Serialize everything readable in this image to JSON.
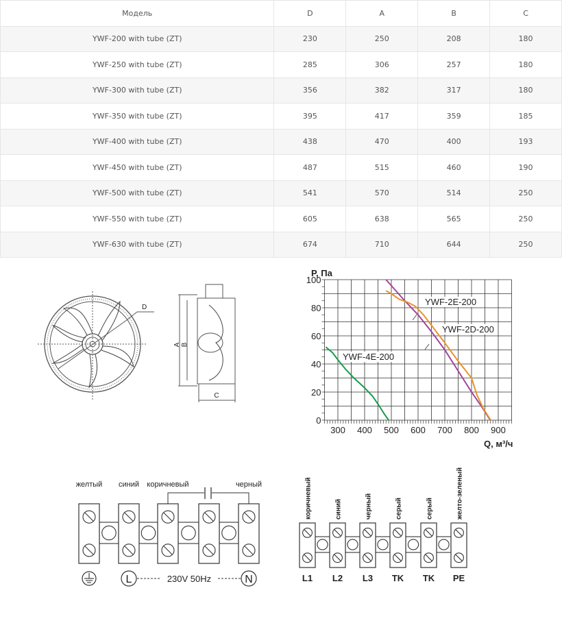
{
  "table": {
    "headers": [
      "Модель",
      "D",
      "A",
      "B",
      "C"
    ],
    "rows": [
      [
        "YWF-200 with tube (ZT)",
        "230",
        "250",
        "208",
        "180"
      ],
      [
        "YWF-250 with tube (ZT)",
        "285",
        "306",
        "257",
        "180"
      ],
      [
        "YWF-300 with tube (ZT)",
        "356",
        "382",
        "317",
        "180"
      ],
      [
        "YWF-350 with tube (ZT)",
        "395",
        "417",
        "359",
        "185"
      ],
      [
        "YWF-400 with tube (ZT)",
        "438",
        "470",
        "400",
        "193"
      ],
      [
        "YWF-450 with tube (ZT)",
        "487",
        "515",
        "460",
        "190"
      ],
      [
        "YWF-500 with tube (ZT)",
        "541",
        "570",
        "514",
        "250"
      ],
      [
        "YWF-550 with tube (ZT)",
        "605",
        "638",
        "565",
        "250"
      ],
      [
        "YWF-630 with tube (ZT)",
        "674",
        "710",
        "644",
        "250"
      ]
    ]
  },
  "drawing": {
    "label_d": "D",
    "label_a": "A",
    "label_b": "B",
    "label_c": "C"
  },
  "chart_data": {
    "type": "line",
    "ylabel": "P, Па",
    "xlabel": "Q, м³/ч",
    "xlim": [
      250,
      950
    ],
    "ylim": [
      0,
      100
    ],
    "xticks": [
      300,
      400,
      500,
      600,
      700,
      800,
      900
    ],
    "yticks": [
      0,
      20,
      40,
      60,
      80,
      100
    ],
    "grid": true,
    "series": [
      {
        "name": "YWF-4E-200",
        "color": "#1a9a4a",
        "x": [
          255,
          280,
          300,
          330,
          360,
          400,
          430,
          455,
          475,
          490
        ],
        "y": [
          52,
          48,
          43,
          36,
          30,
          23,
          17,
          10,
          4,
          0
        ]
      },
      {
        "name": "YWF-2D-200",
        "color": "#a0449a",
        "x": [
          480,
          550,
          600,
          650,
          700,
          750,
          800,
          840,
          870
        ],
        "y": [
          100,
          85,
          75,
          63,
          50,
          35,
          20,
          9,
          0
        ]
      },
      {
        "name": "YWF-2E-200",
        "color": "#e8932a",
        "x": [
          480,
          500,
          530,
          560,
          590,
          620,
          660,
          700,
          750,
          800,
          820,
          845,
          872
        ],
        "y": [
          92,
          90,
          86,
          84,
          81,
          75,
          65,
          55,
          42,
          30,
          18,
          8,
          0
        ]
      }
    ]
  },
  "wiring_single_phase": {
    "wire_labels": [
      "желтый",
      "синий",
      "коричневый",
      "черный"
    ],
    "supply_label": "230V 50Hz",
    "terminal_l": "L",
    "terminal_n": "N"
  },
  "wiring_three_phase": {
    "wire_labels": [
      "коричневый",
      "синий",
      "черный",
      "серый",
      "серый",
      "желто-зеленый"
    ],
    "terminal_labels": [
      "L1",
      "L2",
      "L3",
      "TK",
      "TK",
      "PE"
    ]
  }
}
